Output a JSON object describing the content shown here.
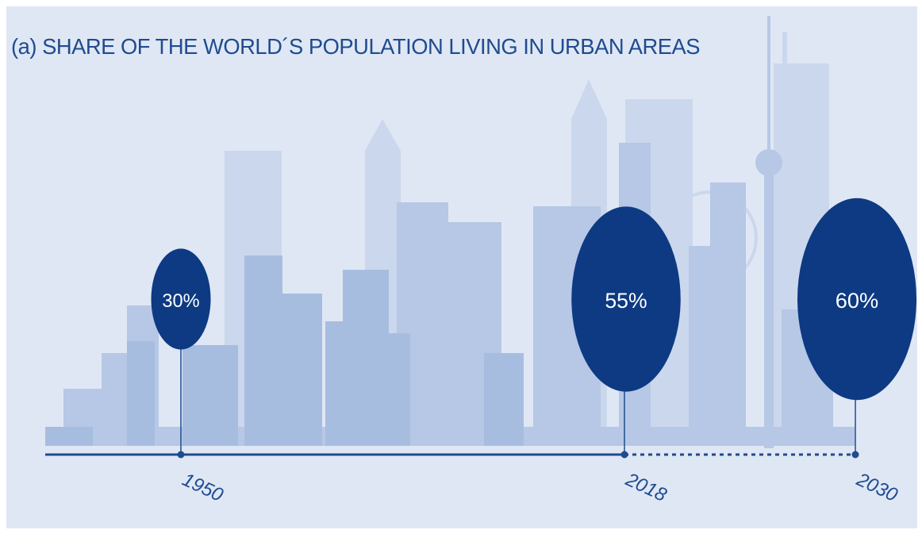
{
  "chart_data": {
    "type": "bubble-timeline",
    "title": "(a) SHARE OF THE WORLD´S POPULATION LIVING IN URBAN AREAS",
    "categories": [
      "1950",
      "2018",
      "2030"
    ],
    "values": [
      30,
      55,
      60
    ],
    "value_labels": [
      "30%",
      "55%",
      "60%"
    ],
    "color": "#0d3a82"
  }
}
